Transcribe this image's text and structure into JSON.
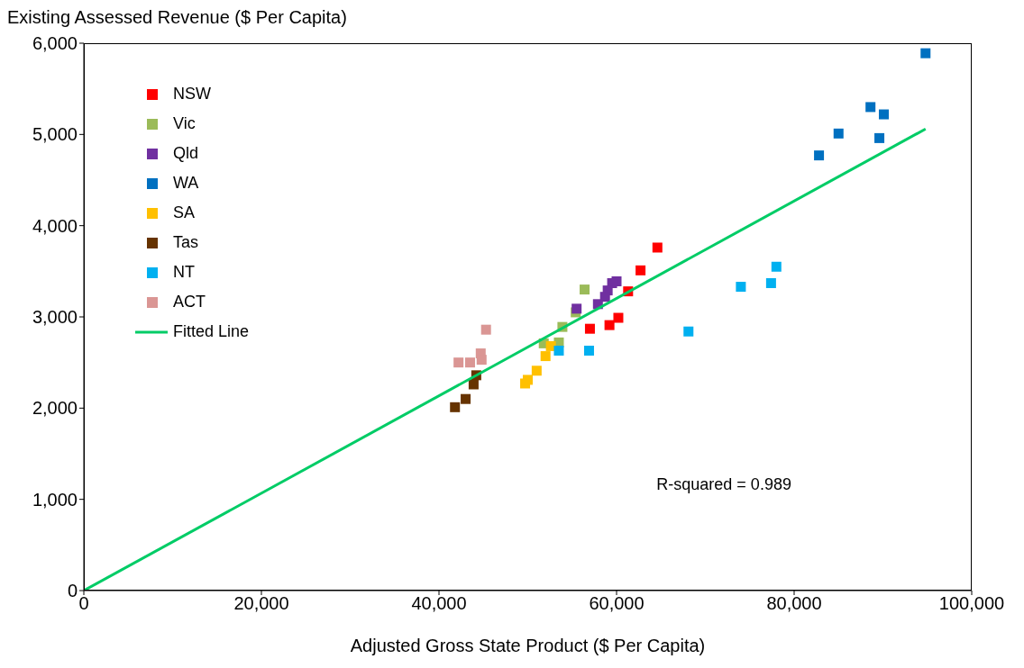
{
  "chart_data": {
    "type": "scatter",
    "xlabel": "Adjusted Gross State Product ($ Per Capita)",
    "ylabel": "Existing Assessed Revenue ($ Per Capita)",
    "xlim": [
      0,
      100000
    ],
    "xticks": [
      {
        "value": 0,
        "label": "0"
      },
      {
        "value": 20000,
        "label": "20,000"
      },
      {
        "value": 40000,
        "label": "40,000"
      },
      {
        "value": 60000,
        "label": "60,000"
      },
      {
        "value": 80000,
        "label": "80,000"
      },
      {
        "value": 100000,
        "label": "100,000"
      }
    ],
    "ylim": [
      0,
      6000
    ],
    "yticks": [
      {
        "value": 0,
        "label": "0"
      },
      {
        "value": 1000,
        "label": "1,000"
      },
      {
        "value": 2000,
        "label": "2,000"
      },
      {
        "value": 3000,
        "label": "3,000"
      },
      {
        "value": 4000,
        "label": "4,000"
      },
      {
        "value": 5000,
        "label": "5,000"
      },
      {
        "value": 6000,
        "label": "6,000"
      }
    ],
    "legend": "top left",
    "marker": "square",
    "annotations": [
      "R-squared = 0.989"
    ],
    "series": [
      {
        "name": "NSW",
        "color": "#ff0000",
        "x": [
          64600,
          62700,
          61300,
          60200,
          59200,
          57000
        ],
        "values": [
          3760,
          3510,
          3280,
          2990,
          2910,
          2870
        ]
      },
      {
        "name": "Vic",
        "color": "#9bbb59",
        "x": [
          56400,
          55400,
          53900,
          53500,
          51800
        ],
        "values": [
          3300,
          3050,
          2890,
          2720,
          2710
        ]
      },
      {
        "name": "Qld",
        "color": "#7030a0",
        "x": [
          60000,
          59500,
          59000,
          58700,
          57900,
          55500
        ],
        "values": [
          3390,
          3370,
          3290,
          3220,
          3140,
          3090
        ]
      },
      {
        "name": "WA",
        "color": "#0070c0",
        "x": [
          88600,
          90100,
          85000,
          89600,
          82800,
          94800
        ],
        "values": [
          5300,
          5220,
          5010,
          4960,
          4770,
          5890
        ]
      },
      {
        "name": "SA",
        "color": "#ffc000",
        "x": [
          52600,
          52000,
          51000,
          50000,
          49700
        ],
        "values": [
          2680,
          2570,
          2410,
          2310,
          2270
        ]
      },
      {
        "name": "Tas",
        "color": "#663300",
        "x": [
          44200,
          43900,
          43000,
          41800
        ],
        "values": [
          2360,
          2260,
          2100,
          2010
        ]
      },
      {
        "name": "NT",
        "color": "#00b0f0",
        "x": [
          53500,
          56900,
          78000,
          77400,
          74000,
          68100
        ],
        "values": [
          2630,
          2630,
          3550,
          3370,
          3330,
          2840
        ]
      },
      {
        "name": "ACT",
        "color": "#da9694",
        "x": [
          45300,
          44700,
          44800,
          42200,
          43500
        ],
        "values": [
          2860,
          2600,
          2530,
          2500,
          2500
        ]
      },
      {
        "name": "Fitted Line",
        "type": "line",
        "color": "#00cc66",
        "marker": "none",
        "x": [
          0,
          94800
        ],
        "values": [
          0,
          5060
        ]
      }
    ]
  }
}
